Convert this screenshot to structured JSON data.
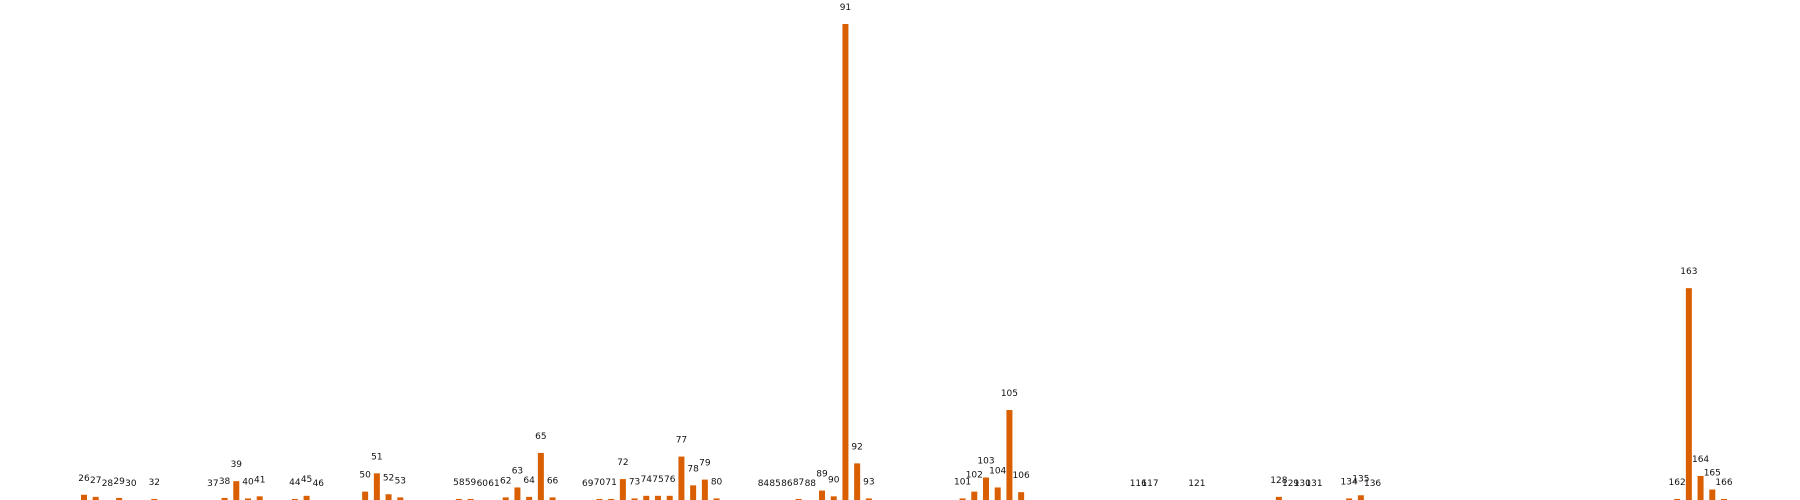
{
  "chart_data": {
    "type": "bar",
    "title": "",
    "xlabel": "",
    "ylabel": "",
    "ylim": [
      0,
      91
    ],
    "bar_color": "#D95F02",
    "grid": false,
    "axes_visible": false,
    "x": [
      26,
      27,
      28,
      29,
      30,
      32,
      37,
      38,
      39,
      40,
      41,
      44,
      45,
      46,
      50,
      51,
      52,
      53,
      58,
      59,
      60,
      61,
      62,
      63,
      64,
      65,
      66,
      69,
      70,
      71,
      72,
      73,
      74,
      75,
      76,
      77,
      78,
      79,
      80,
      84,
      85,
      86,
      87,
      88,
      89,
      90,
      91,
      92,
      93,
      101,
      102,
      103,
      104,
      105,
      106,
      116,
      117,
      121,
      128,
      129,
      130,
      131,
      134,
      135,
      136,
      162,
      163,
      164,
      165,
      166
    ],
    "labels": [
      "26",
      "27",
      "28",
      "29",
      "30",
      "32",
      "37",
      "38",
      "39",
      "40",
      "41",
      "44",
      "45",
      "46",
      "50",
      "51",
      "52",
      "53",
      "58",
      "59",
      "60",
      "61",
      "62",
      "63",
      "64",
      "65",
      "66",
      "69",
      "70",
      "71",
      "72",
      "73",
      "74",
      "75",
      "76",
      "77",
      "78",
      "79",
      "80",
      "84",
      "85",
      "86",
      "87",
      "88",
      "89",
      "90",
      "91",
      "92",
      "93",
      "101",
      "102",
      "103",
      "104",
      "105",
      "106",
      "116",
      "117",
      "121",
      "128",
      "129",
      "130",
      "131",
      "134",
      "135",
      "136",
      "162",
      "163",
      "164",
      "165",
      "166"
    ],
    "values": [
      1.0,
      0.6,
      0.0,
      0.4,
      0.0,
      0.2,
      0.0,
      0.4,
      3.6,
      0.3,
      0.7,
      0.2,
      0.8,
      0.0,
      1.6,
      5.1,
      1.1,
      0.5,
      0.2,
      0.2,
      0.0,
      0.0,
      0.5,
      2.4,
      0.6,
      9.0,
      0.5,
      0.0,
      0.2,
      0.2,
      4.0,
      0.3,
      0.8,
      0.8,
      0.8,
      8.3,
      2.8,
      3.9,
      0.3,
      0.0,
      0.0,
      0.0,
      0.2,
      0.0,
      1.8,
      0.7,
      91.0,
      7.0,
      0.3,
      0.3,
      1.6,
      4.3,
      2.4,
      17.2,
      1.5,
      0.0,
      0.0,
      0.0,
      0.6,
      0.0,
      0.0,
      0.0,
      0.3,
      0.9,
      0.0,
      0.2,
      40.5,
      4.6,
      2.0,
      0.2
    ]
  }
}
